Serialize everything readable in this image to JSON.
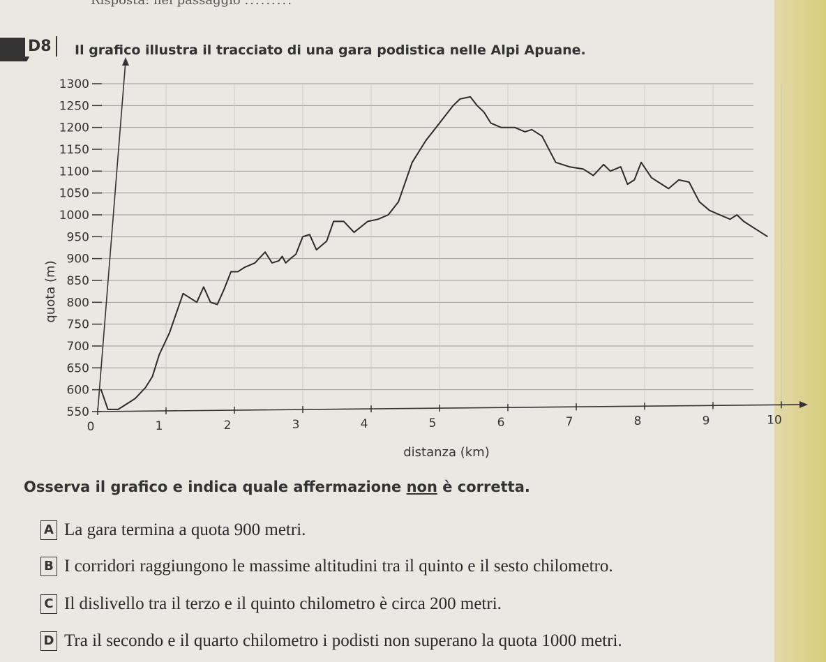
{
  "header_text": "Risposta: nel passaggio",
  "question": {
    "number": "D8",
    "title": "Il grafico illustra il tracciato di una gara podistica nelle Alpi Apuane."
  },
  "chart_data": {
    "type": "line",
    "xlabel": "distanza (km)",
    "ylabel": "quota (m)",
    "xlim": [
      0,
      10
    ],
    "ylim": [
      550,
      1300
    ],
    "x_ticks": [
      0,
      1,
      2,
      3,
      4,
      5,
      6,
      7,
      8,
      9,
      10
    ],
    "y_ticks": [
      550,
      600,
      650,
      700,
      750,
      800,
      850,
      900,
      950,
      1000,
      1050,
      1100,
      1150,
      1200,
      1250,
      1300
    ],
    "grid": "horizontal",
    "series": [
      {
        "x": [
          0.05,
          0.15,
          0.3,
          0.45,
          0.55,
          0.7,
          0.8,
          0.9,
          1.05,
          1.25,
          1.45,
          1.55,
          1.65,
          1.75,
          1.85,
          1.95,
          2.05,
          2.15,
          2.3,
          2.45,
          2.55,
          2.65,
          2.7,
          2.75,
          2.82,
          2.9,
          3.0,
          3.1,
          3.2,
          3.35,
          3.45,
          3.6,
          3.75,
          3.95,
          4.1,
          4.25,
          4.4,
          4.6,
          4.8,
          4.95,
          5.05,
          5.2,
          5.3,
          5.45,
          5.55,
          5.65,
          5.75,
          5.9,
          6.1,
          6.25,
          6.35,
          6.5,
          6.7,
          6.9,
          7.1,
          7.25,
          7.4,
          7.5,
          7.65,
          7.75,
          7.85,
          7.95,
          8.1,
          8.25,
          8.35,
          8.5,
          8.65,
          8.8,
          8.95,
          9.1,
          9.25,
          9.35,
          9.45,
          9.6,
          9.8
        ],
        "y": [
          600,
          555,
          555,
          570,
          580,
          605,
          630,
          680,
          730,
          820,
          800,
          835,
          800,
          795,
          830,
          870,
          870,
          880,
          890,
          915,
          890,
          895,
          905,
          890,
          900,
          910,
          950,
          955,
          920,
          940,
          985,
          985,
          960,
          985,
          990,
          1000,
          1030,
          1120,
          1170,
          1200,
          1220,
          1250,
          1265,
          1270,
          1250,
          1235,
          1210,
          1200,
          1200,
          1190,
          1195,
          1180,
          1120,
          1110,
          1105,
          1090,
          1115,
          1100,
          1110,
          1070,
          1080,
          1120,
          1085,
          1070,
          1060,
          1080,
          1075,
          1030,
          1010,
          1000,
          990,
          1000,
          985,
          970,
          950
        ]
      }
    ]
  },
  "instruction": {
    "before": "Osserva il grafico e indica quale affermazione ",
    "underlined": "non",
    "after": " è corretta."
  },
  "options": [
    {
      "letter": "A",
      "text": "La gara termina a quota 900 metri."
    },
    {
      "letter": "B",
      "text": "I corridori raggiungono le massime altitudini tra il quinto e il sesto chilometro."
    },
    {
      "letter": "C",
      "text": "Il dislivello tra il terzo e il quinto chilometro è circa 200 metri."
    },
    {
      "letter": "D",
      "text": "Tra il secondo e il quarto chilometro i podisti non superano la quota 1000 metri."
    }
  ],
  "colors": {
    "background": "#e9e8e3",
    "ink": "#2b2b2b",
    "grid": "#9a9a9a"
  }
}
